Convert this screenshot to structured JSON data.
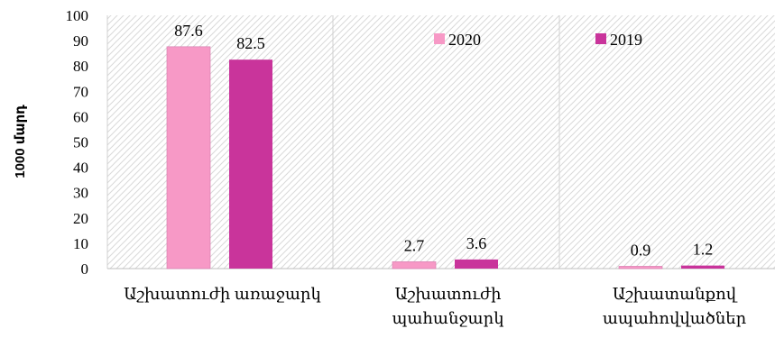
{
  "chart_data": {
    "type": "bar",
    "categories": [
      [
        "Աշխատուժի առաջարկ"
      ],
      [
        "Աշխատուժի",
        "պահանջարկ"
      ],
      [
        "Աշխատանքով",
        "ապահովվածներ"
      ]
    ],
    "series": [
      {
        "name": "2020",
        "values": [
          87.6,
          2.7,
          0.9
        ],
        "color": "#f799c6"
      },
      {
        "name": "2019",
        "values": [
          82.5,
          3.6,
          1.2
        ],
        "color": "#c9349b"
      }
    ],
    "ylabel": "1000 մարդ",
    "ylim": [
      0,
      100
    ],
    "yticks": [
      0,
      10,
      20,
      30,
      40,
      50,
      60,
      70,
      80,
      90,
      100
    ],
    "grid": false,
    "legend_position": "top-right",
    "plot_background": "hatched"
  }
}
